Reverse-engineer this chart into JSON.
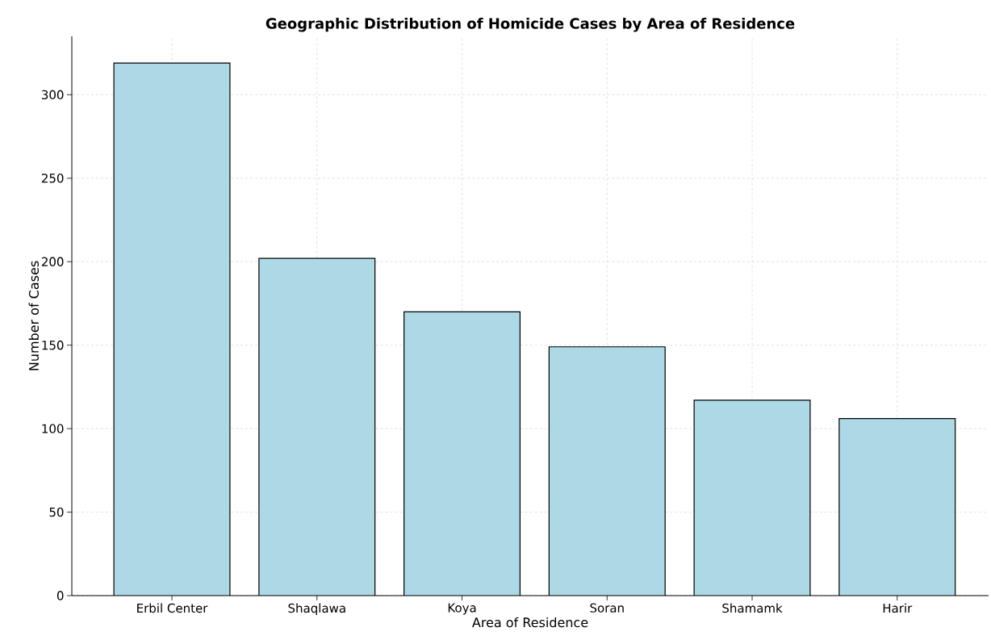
{
  "chart_data": {
    "type": "bar",
    "title": "Geographic Distribution of Homicide Cases by Area of Residence",
    "xlabel": "Area of Residence",
    "ylabel": "Number of Cases",
    "categories": [
      "Erbil Center",
      "Shaqlawa",
      "Koya",
      "Soran",
      "Shamamk",
      "Harir"
    ],
    "values": [
      319,
      202,
      170,
      149,
      117,
      106
    ],
    "color": "#add8e6",
    "ylim": [
      0,
      335
    ],
    "yticks": [
      0,
      50,
      100,
      150,
      200,
      250,
      300
    ],
    "grid": true
  }
}
